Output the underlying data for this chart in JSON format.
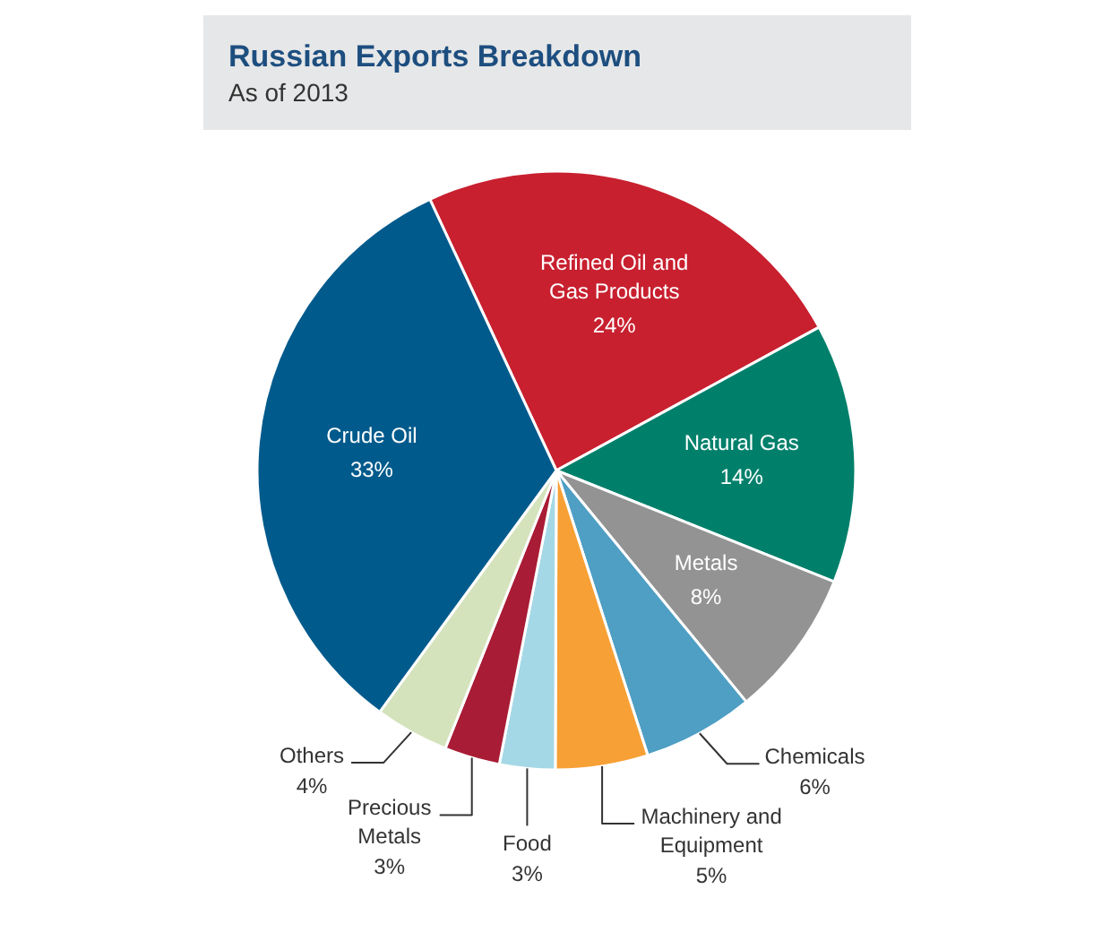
{
  "chart_data": {
    "type": "pie",
    "title": "Russian Exports Breakdown",
    "subtitle": "As of 2013",
    "categories": [
      "Refined Oil and Gas Products",
      "Natural Gas",
      "Metals",
      "Chemicals",
      "Machinery and Equipment",
      "Food",
      "Precious Metals",
      "Others",
      "Crude Oil"
    ],
    "values": [
      24,
      14,
      8,
      6,
      5,
      3,
      3,
      4,
      33
    ],
    "value_labels": [
      "24%",
      "14%",
      "8%",
      "6%",
      "5%",
      "3%",
      "3%",
      "4%",
      "33%"
    ],
    "colors": [
      "#c8202f",
      "#00806b",
      "#939393",
      "#4f9ec4",
      "#f7a035",
      "#a5d8e6",
      "#a81c35",
      "#d5e3bd",
      "#005a8c"
    ]
  }
}
